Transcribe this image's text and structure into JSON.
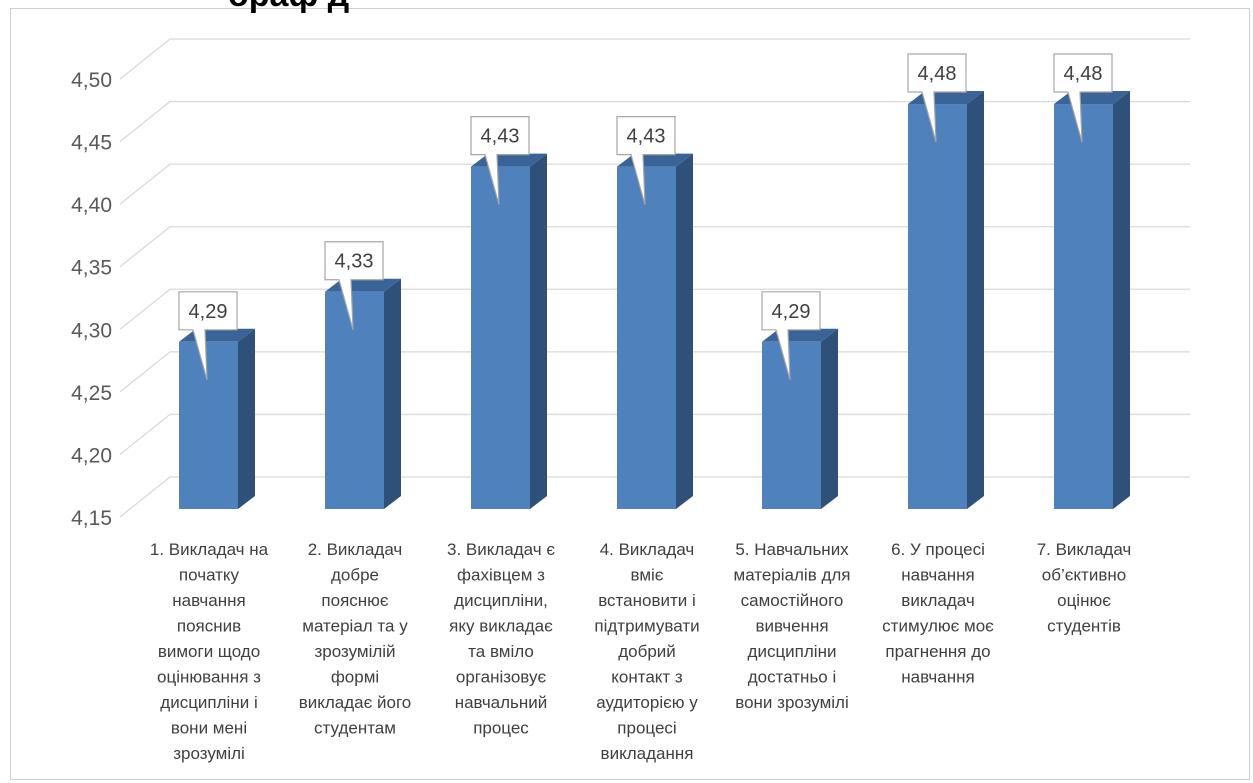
{
  "heading_fragment": "ораф д",
  "chart_data": {
    "type": "bar",
    "style": "3d-column",
    "title": "",
    "xlabel": "",
    "ylabel": "",
    "ylim": [
      4.15,
      4.5
    ],
    "yticks": [
      "4,15",
      "4,20",
      "4,25",
      "4,30",
      "4,35",
      "4,40",
      "4,45",
      "4,50"
    ],
    "grid": true,
    "legend": "none",
    "colors": {
      "bar_front": "#4f81bd",
      "bar_side": "#2f5078",
      "bar_top": "#3a6497",
      "grid": "#d9d9d9",
      "label_border": "#a6a6a6"
    },
    "categories": [
      [
        "1. Викладач на",
        "початку",
        "навчання",
        "пояснив",
        "вимоги щодо",
        "оцінювання з",
        "дисципліни і",
        "вони мені",
        "зрозумілі"
      ],
      [
        "2. Викладач",
        "добре",
        "пояснює",
        "матеріал та у",
        "зрозумілій",
        "формі",
        "викладає його",
        "студентам"
      ],
      [
        "3. Викладач є",
        "фахівцем з",
        "дисципліни,",
        "яку викладає",
        "та вміло",
        "організовує",
        "навчальний",
        "процес"
      ],
      [
        "4. Викладач",
        "вміє",
        "встановити і",
        "підтримувати",
        "добрий",
        "контакт з",
        "аудиторією у",
        "процесі",
        "викладання"
      ],
      [
        "5. Навчальних",
        "матеріалів для",
        "самостійного",
        "вивчення",
        "дисципліни",
        "достатньо і",
        "вони зрозумілі"
      ],
      [
        "6.  У процесі",
        "навчання",
        "викладач",
        "стимулює моє",
        "прагнення до",
        "навчання"
      ],
      [
        "7. Викладач",
        "об’єктивно",
        "оцінює",
        "студентів"
      ]
    ],
    "values": [
      4.29,
      4.33,
      4.43,
      4.43,
      4.29,
      4.48,
      4.48
    ],
    "data_labels": [
      "4,29",
      "4,33",
      "4,43",
      "4,43",
      "4,29",
      "4,48",
      "4,48"
    ]
  }
}
